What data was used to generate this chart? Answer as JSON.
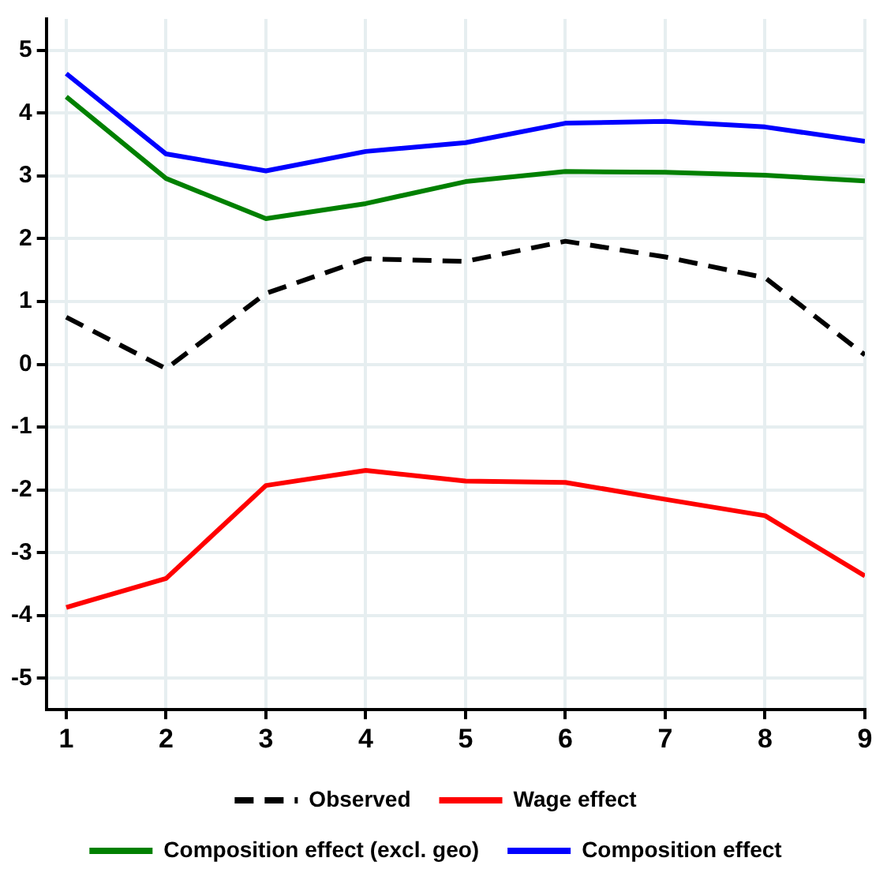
{
  "chart_data": {
    "type": "line",
    "x": [
      1,
      2,
      3,
      4,
      5,
      6,
      7,
      8,
      9
    ],
    "xlim": [
      0.8,
      9
    ],
    "xticks": [
      1,
      2,
      3,
      4,
      5,
      6,
      7,
      8,
      9
    ],
    "ylim": [
      -5.5,
      5.5
    ],
    "yticks": [
      -5,
      -4,
      -3,
      -2,
      -1,
      0,
      1,
      2,
      3,
      4,
      5
    ],
    "grid": true,
    "legend": "bottom",
    "marker": "none",
    "series": [
      {
        "name": "Observed",
        "color": "#000000",
        "line_style": "dashed",
        "values": [
          0.75,
          -0.07,
          1.13,
          1.68,
          1.64,
          1.96,
          1.71,
          1.38,
          0.15
        ]
      },
      {
        "name": "Wage effect",
        "color": "#ff0000",
        "line_style": "solid",
        "values": [
          -3.87,
          -3.41,
          -1.93,
          -1.69,
          -1.86,
          -1.88,
          -2.15,
          -2.41,
          -3.37
        ]
      },
      {
        "name": "Composition effect (excl. geo)",
        "color": "#008000",
        "line_style": "solid",
        "values": [
          4.26,
          2.96,
          2.32,
          2.56,
          2.91,
          3.07,
          3.06,
          3.01,
          2.92
        ]
      },
      {
        "name": "Composition effect",
        "color": "#0000ff",
        "line_style": "solid",
        "values": [
          4.63,
          3.35,
          3.08,
          3.39,
          3.53,
          3.84,
          3.87,
          3.78,
          3.55
        ]
      }
    ]
  }
}
